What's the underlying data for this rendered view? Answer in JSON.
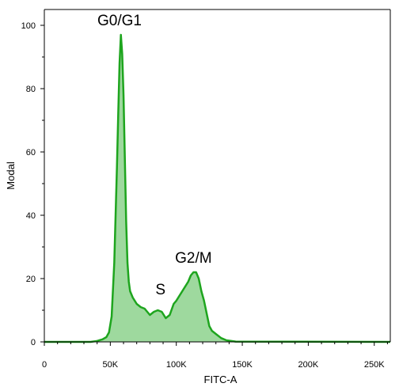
{
  "chart_data": {
    "type": "area",
    "xlabel": "FITC-A",
    "ylabel": "Modal",
    "xlim": [
      0,
      262144
    ],
    "ylim": [
      0,
      105
    ],
    "x_ticks": [
      {
        "value": 0,
        "label": "0"
      },
      {
        "value": 50000,
        "label": "50K"
      },
      {
        "value": 100000,
        "label": "100K"
      },
      {
        "value": 150000,
        "label": "150K"
      },
      {
        "value": 200000,
        "label": "200K"
      },
      {
        "value": 250000,
        "label": "250K"
      }
    ],
    "y_ticks": [
      {
        "value": 0,
        "label": "0"
      },
      {
        "value": 20,
        "label": "20"
      },
      {
        "value": 40,
        "label": "40"
      },
      {
        "value": 60,
        "label": "60"
      },
      {
        "value": 80,
        "label": "80"
      },
      {
        "value": 100,
        "label": "100"
      }
    ],
    "grid": false,
    "series": [
      {
        "x": [
          0,
          35000,
          40000,
          44000,
          47000,
          49000,
          51000,
          53000,
          55000,
          56000,
          57000,
          58000,
          59000,
          60000,
          61000,
          62000,
          63000,
          64000,
          65000,
          67000,
          70000,
          73000,
          76000,
          78000,
          80000,
          83000,
          86000,
          89000,
          92000,
          95000,
          98000,
          100000,
          103000,
          106000,
          109000,
          111000,
          113000,
          115000,
          117000,
          119000,
          121000,
          123000,
          125000,
          127000,
          130000,
          134000,
          138000,
          145000,
          262144
        ],
        "y": [
          0,
          0,
          0.3,
          0.8,
          1.5,
          3,
          8,
          25,
          55,
          72,
          88,
          97,
          91,
          78,
          58,
          38,
          25,
          19,
          16,
          14,
          12,
          11,
          10.5,
          9.5,
          8.5,
          9.5,
          10,
          9.5,
          7.5,
          8.5,
          12,
          13,
          15,
          17,
          19,
          21,
          22,
          22,
          20,
          16,
          13,
          9,
          5,
          3.5,
          2.5,
          1.2,
          0.5,
          0.1,
          0
        ]
      }
    ],
    "colors": {
      "line": "#1ea51e",
      "fill": "#9ed99e"
    },
    "annotations": [
      {
        "text": "G0/G1",
        "x": 57000,
        "y": 100
      },
      {
        "text": "S",
        "x": 88000,
        "y": 15
      },
      {
        "text": "G2/M",
        "x": 113000,
        "y": 25
      }
    ]
  }
}
